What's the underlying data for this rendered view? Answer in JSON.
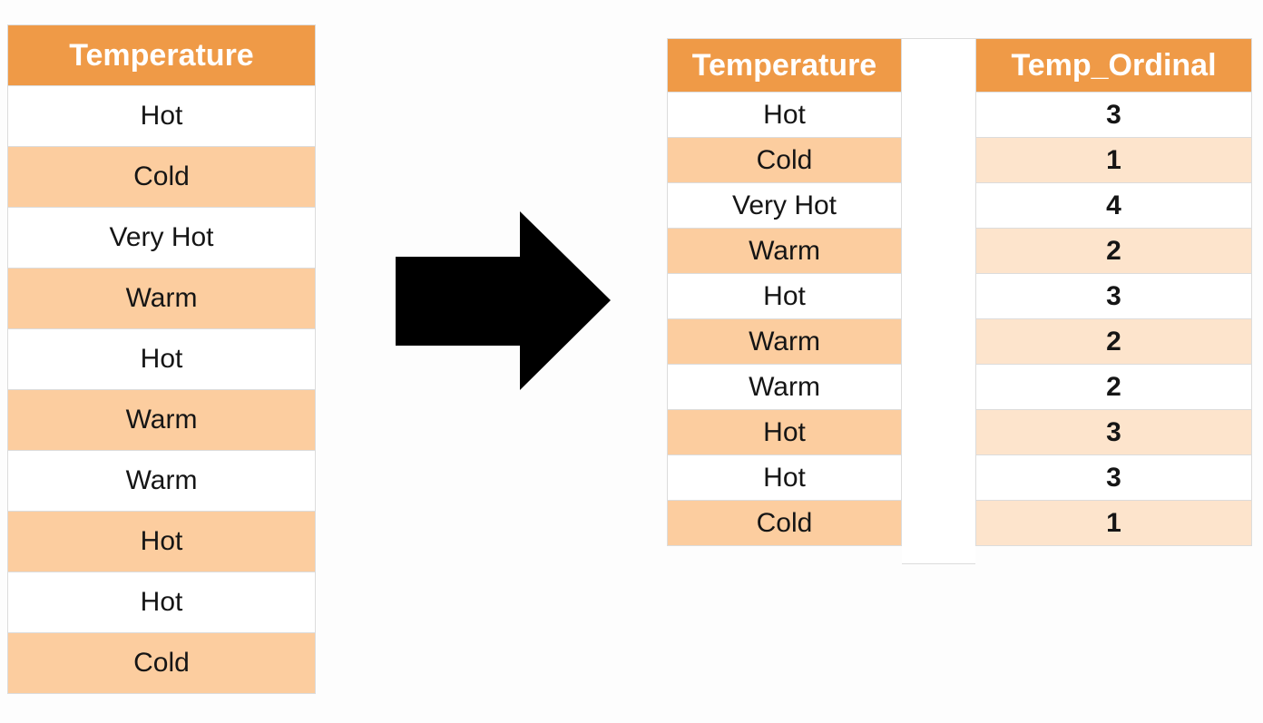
{
  "left_table": {
    "header": "Temperature",
    "rows": [
      "Hot",
      "Cold",
      "Very Hot",
      "Warm",
      "Hot",
      "Warm",
      "Warm",
      "Hot",
      "Hot",
      "Cold"
    ]
  },
  "right_table": {
    "temperature_header": "Temperature",
    "ordinal_header": "Temp_Ordinal",
    "rows": [
      {
        "temperature": "Hot",
        "ordinal": "3"
      },
      {
        "temperature": "Cold",
        "ordinal": "1"
      },
      {
        "temperature": "Very Hot",
        "ordinal": "4"
      },
      {
        "temperature": "Warm",
        "ordinal": "2"
      },
      {
        "temperature": "Hot",
        "ordinal": "3"
      },
      {
        "temperature": "Warm",
        "ordinal": "2"
      },
      {
        "temperature": "Warm",
        "ordinal": "2"
      },
      {
        "temperature": "Hot",
        "ordinal": "3"
      },
      {
        "temperature": "Hot",
        "ordinal": "3"
      },
      {
        "temperature": "Cold",
        "ordinal": "1"
      }
    ]
  },
  "colors": {
    "header_orange": "#ef9a47",
    "row_peach": "#fccd9f",
    "row_light_peach": "#fde4cc",
    "arrow": "#000000"
  },
  "icons": {
    "arrow": "right-arrow-icon"
  }
}
